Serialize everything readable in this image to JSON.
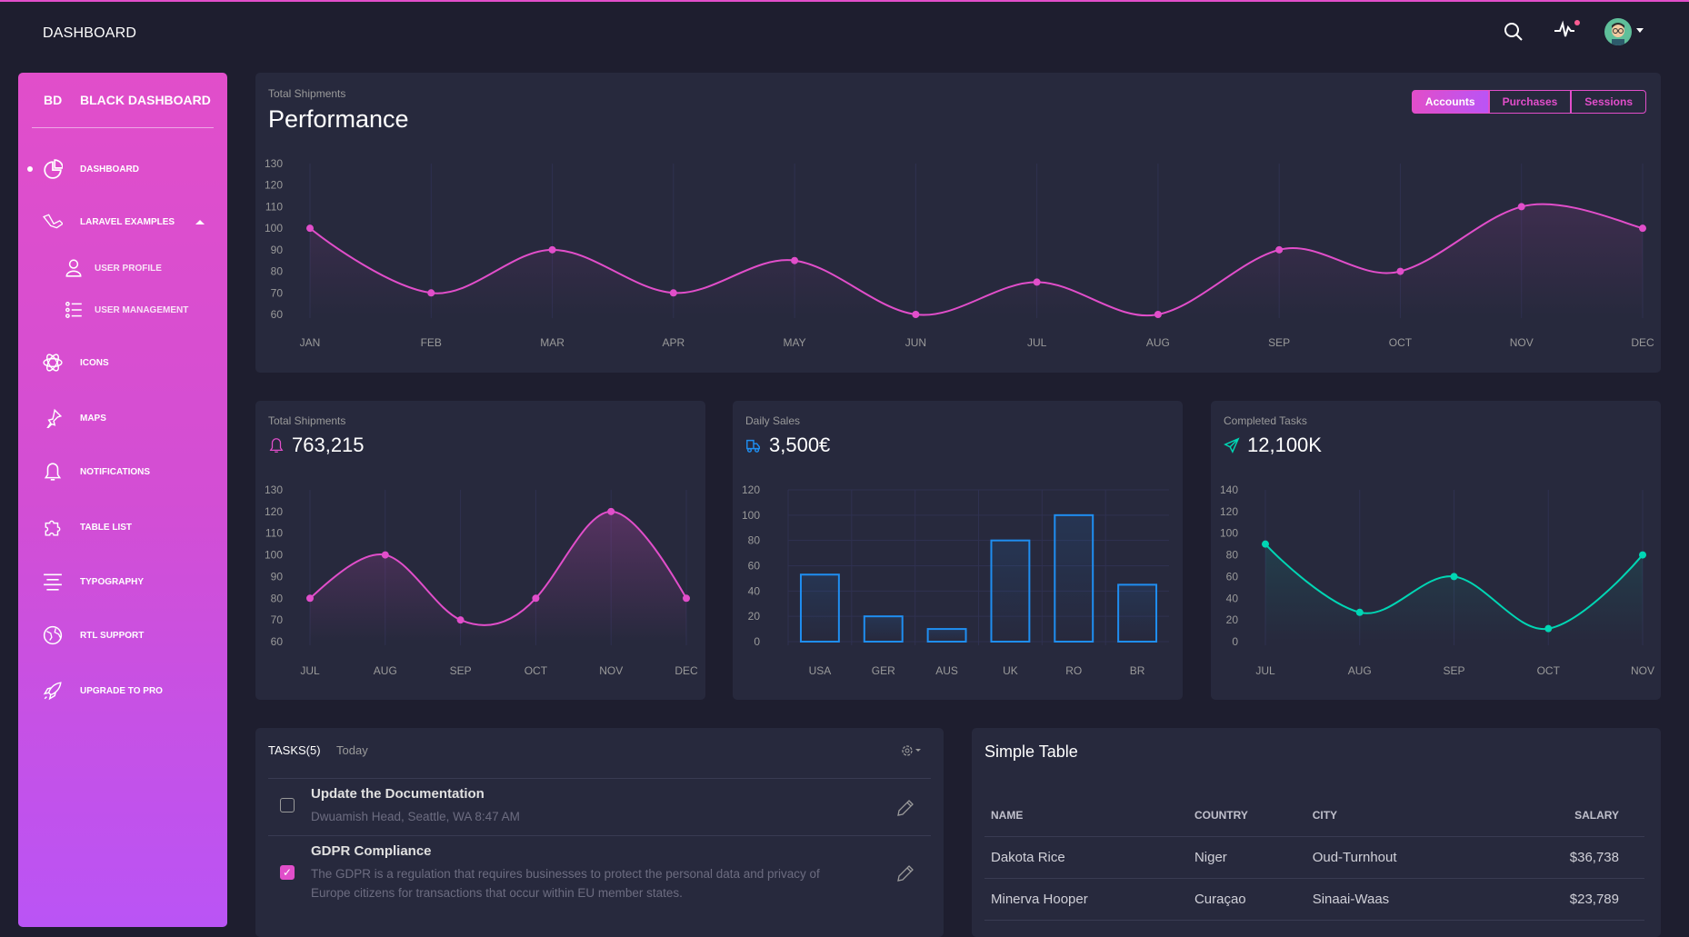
{
  "topbar": {
    "title": "DASHBOARD",
    "icons": [
      "search-icon",
      "activity-icon",
      "avatar"
    ]
  },
  "sidebar": {
    "logo_mini": "BD",
    "logo_full": "BLACK DASHBOARD",
    "items": [
      {
        "label": "DASHBOARD",
        "icon": "chart-pie-icon",
        "active": true
      },
      {
        "label": "LARAVEL EXAMPLES",
        "icon": "laravel-icon",
        "expanded": true
      },
      {
        "label": "USER PROFILE",
        "icon": "user-icon",
        "sub": true
      },
      {
        "label": "USER MANAGEMENT",
        "icon": "bullet-list-icon",
        "sub": true
      },
      {
        "label": "ICONS",
        "icon": "atom-icon"
      },
      {
        "label": "MAPS",
        "icon": "pin-icon"
      },
      {
        "label": "NOTIFICATIONS",
        "icon": "bell-icon"
      },
      {
        "label": "TABLE LIST",
        "icon": "puzzle-icon"
      },
      {
        "label": "TYPOGRAPHY",
        "icon": "align-center-icon"
      },
      {
        "label": "RTL SUPPORT",
        "icon": "world-icon"
      },
      {
        "label": "UPGRADE TO PRO",
        "icon": "spaceship-icon"
      }
    ]
  },
  "performance": {
    "subtitle": "Total Shipments",
    "title": "Performance",
    "tabs": [
      "Accounts",
      "Purchases",
      "Sessions"
    ],
    "active_tab": "Accounts"
  },
  "stats": [
    {
      "title": "Total Shipments",
      "value": "763,215",
      "icon": "bell-icon",
      "color": "#e14eca"
    },
    {
      "title": "Daily Sales",
      "value": "3,500€",
      "icon": "delivery-icon",
      "color": "#1f8ef1"
    },
    {
      "title": "Completed Tasks",
      "value": "12,100K",
      "icon": "send-icon",
      "color": "#00d6b4"
    }
  ],
  "chart_data": [
    {
      "type": "line",
      "title": "Performance",
      "categories": [
        "JAN",
        "FEB",
        "MAR",
        "APR",
        "MAY",
        "JUN",
        "JUL",
        "AUG",
        "SEP",
        "OCT",
        "NOV",
        "DEC"
      ],
      "values": [
        100,
        70,
        90,
        70,
        85,
        60,
        75,
        60,
        90,
        80,
        110,
        100
      ],
      "ylim": [
        60,
        130
      ],
      "yticks": [
        60,
        70,
        80,
        90,
        100,
        110,
        120,
        130
      ],
      "color": "#e14eca"
    },
    {
      "type": "line",
      "title": "Total Shipments",
      "categories": [
        "JUL",
        "AUG",
        "SEP",
        "OCT",
        "NOV",
        "DEC"
      ],
      "values": [
        80,
        100,
        70,
        80,
        120,
        80
      ],
      "ylim": [
        60,
        130
      ],
      "yticks": [
        60,
        70,
        80,
        90,
        100,
        110,
        120,
        130
      ],
      "color": "#e14eca"
    },
    {
      "type": "bar",
      "title": "Daily Sales",
      "categories": [
        "USA",
        "GER",
        "AUS",
        "UK",
        "RO",
        "BR"
      ],
      "values": [
        53,
        20,
        10,
        80,
        100,
        45
      ],
      "ylim": [
        0,
        120
      ],
      "yticks": [
        0,
        20,
        40,
        60,
        80,
        100,
        120
      ],
      "color": "#1f8ef1"
    },
    {
      "type": "line",
      "title": "Completed Tasks",
      "categories": [
        "JUL",
        "AUG",
        "SEP",
        "OCT",
        "NOV"
      ],
      "values": [
        90,
        27,
        60,
        12,
        80
      ],
      "ylim": [
        0,
        140
      ],
      "yticks": [
        0,
        20,
        40,
        60,
        80,
        100,
        120,
        140
      ],
      "color": "#00d6b4"
    }
  ],
  "tasks": {
    "title": "TASKS(5)",
    "subtitle": "Today",
    "items": [
      {
        "title": "Update the Documentation",
        "desc": "Dwuamish Head, Seattle, WA 8:47 AM",
        "checked": false
      },
      {
        "title": "GDPR Compliance",
        "desc": "The GDPR is a regulation that requires businesses to protect the personal data and privacy of Europe citizens for transactions that occur within EU member states.",
        "checked": true
      }
    ]
  },
  "table": {
    "title": "Simple Table",
    "headers": [
      "NAME",
      "COUNTRY",
      "CITY",
      "SALARY"
    ],
    "rows": [
      [
        "Dakota Rice",
        "Niger",
        "Oud-Turnhout",
        "$36,738"
      ],
      [
        "Minerva Hooper",
        "Curaçao",
        "Sinaai-Waas",
        "$23,789"
      ]
    ]
  }
}
